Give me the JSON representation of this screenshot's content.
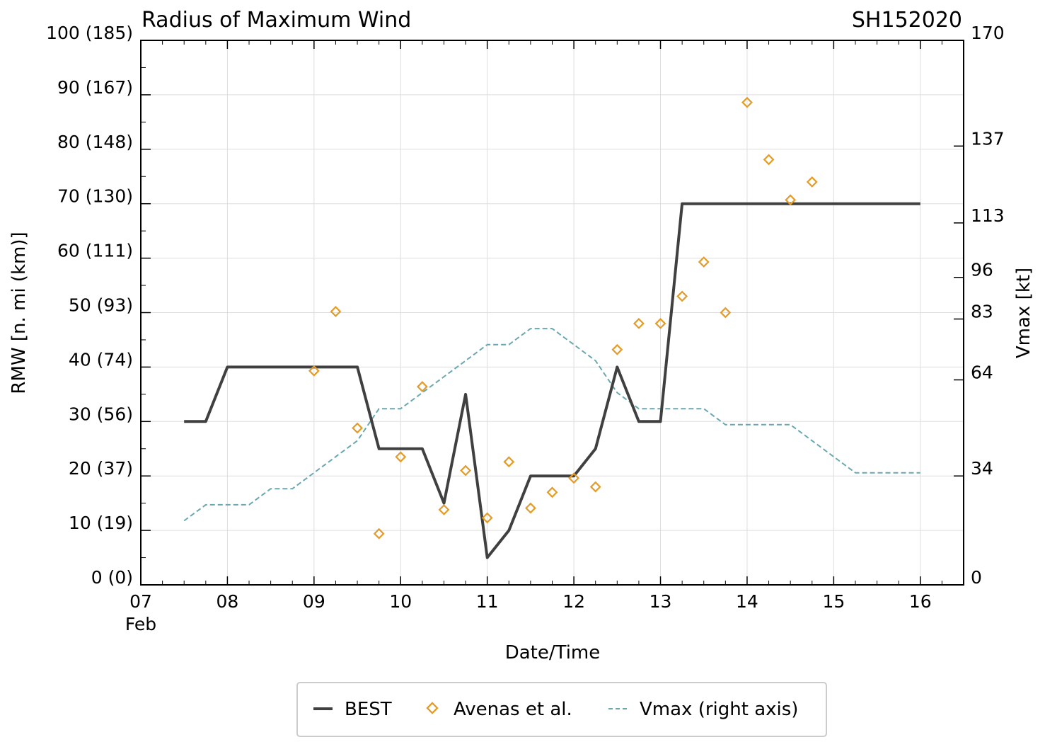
{
  "chart_data": {
    "type": "line",
    "title": "Radius of Maximum Wind",
    "storm_id": "SH152020",
    "xlabel": "Date/Time",
    "ylabel": "RMW [n. mi (km)]",
    "y2label": "Vmax [kt]",
    "month_label": "Feb",
    "xlim": [
      7,
      16.5
    ],
    "ylim": [
      0,
      100
    ],
    "y2lim": [
      0,
      170
    ],
    "x_ticks": [
      {
        "value": 7,
        "label": "07"
      },
      {
        "value": 8,
        "label": "08"
      },
      {
        "value": 9,
        "label": "09"
      },
      {
        "value": 10,
        "label": "10"
      },
      {
        "value": 11,
        "label": "11"
      },
      {
        "value": 12,
        "label": "12"
      },
      {
        "value": 13,
        "label": "13"
      },
      {
        "value": 14,
        "label": "14"
      },
      {
        "value": 15,
        "label": "15"
      },
      {
        "value": 16,
        "label": "16"
      }
    ],
    "y_ticks": [
      {
        "value": 0,
        "label": "0 (0)"
      },
      {
        "value": 10,
        "label": "10 (19)"
      },
      {
        "value": 20,
        "label": "20 (37)"
      },
      {
        "value": 30,
        "label": "30 (56)"
      },
      {
        "value": 40,
        "label": "40 (74)"
      },
      {
        "value": 50,
        "label": "50 (93)"
      },
      {
        "value": 60,
        "label": "60 (111)"
      },
      {
        "value": 70,
        "label": "70 (130)"
      },
      {
        "value": 80,
        "label": "80 (148)"
      },
      {
        "value": 90,
        "label": "90 (167)"
      },
      {
        "value": 100,
        "label": "100 (185)"
      }
    ],
    "y2_ticks": [
      {
        "value": 0,
        "label": "0"
      },
      {
        "value": 34,
        "label": "34"
      },
      {
        "value": 64,
        "label": "64"
      },
      {
        "value": 83,
        "label": "83"
      },
      {
        "value": 96,
        "label": "96"
      },
      {
        "value": 113,
        "label": "113"
      },
      {
        "value": 137,
        "label": "137"
      },
      {
        "value": 170,
        "label": "170"
      }
    ],
    "legend": {
      "position": "bottom-center",
      "entries": [
        {
          "name": "BEST",
          "style": "line"
        },
        {
          "name": "Avenas et al.",
          "style": "diamond"
        },
        {
          "name": "Vmax (right axis)",
          "style": "dashed"
        }
      ]
    },
    "colors": {
      "best": "#404040",
      "avenas": "#e49b27",
      "vmax": "#6aa8b0",
      "grid": "#dddddd",
      "axis": "#000000"
    },
    "series": [
      {
        "name": "BEST",
        "x": [
          7.5,
          7.75,
          8.0,
          8.25,
          8.5,
          8.75,
          9.0,
          9.25,
          9.5,
          9.75,
          10.0,
          10.25,
          10.5,
          10.75,
          11.0,
          11.25,
          11.5,
          11.75,
          12.0,
          12.25,
          12.5,
          12.75,
          13.0,
          13.25,
          13.5,
          13.75,
          14.0,
          14.25,
          14.5,
          14.75,
          15.0,
          15.25,
          15.5,
          15.75,
          16.0
        ],
        "y": [
          30,
          30,
          40,
          40,
          40,
          40,
          40,
          40,
          40,
          25,
          25,
          25,
          15,
          35,
          5,
          10,
          20,
          20,
          20,
          25,
          40,
          30,
          30,
          70,
          70,
          70,
          70,
          70,
          70,
          70,
          70,
          70,
          70,
          70,
          70
        ]
      },
      {
        "name": "Avenas et al.",
        "x": [
          9.0,
          9.25,
          9.5,
          9.75,
          10.0,
          10.25,
          10.5,
          10.75,
          11.0,
          11.25,
          11.5,
          11.75,
          12.0,
          12.25,
          12.5,
          12.75,
          13.0,
          13.25,
          13.5,
          13.75,
          14.0,
          14.25,
          14.5,
          14.75
        ],
        "y": [
          39.3,
          50.2,
          28.8,
          9.4,
          23.5,
          36.4,
          13.8,
          21.0,
          12.3,
          22.6,
          14.1,
          17.0,
          19.6,
          18.0,
          43.2,
          48.0,
          48.0,
          53.0,
          59.3,
          50.0,
          88.6,
          78.1,
          70.7,
          74.0
        ]
      },
      {
        "name": "Vmax (right axis)",
        "axis": "right",
        "x": [
          7.5,
          7.75,
          8.0,
          8.25,
          8.5,
          8.75,
          9.0,
          9.25,
          9.5,
          9.75,
          10.0,
          10.25,
          10.5,
          10.75,
          11.0,
          11.25,
          11.5,
          11.75,
          12.0,
          12.25,
          12.5,
          12.75,
          13.0,
          13.25,
          13.5,
          13.75,
          14.0,
          14.25,
          14.5,
          14.75,
          15.0,
          15.25,
          15.5,
          15.75,
          16.0
        ],
        "y": [
          20,
          25,
          25,
          25,
          30,
          30,
          35,
          40,
          45,
          55,
          55,
          60,
          65,
          70,
          75,
          75,
          80,
          80,
          75,
          70,
          60,
          55,
          55,
          55,
          55,
          50,
          50,
          50,
          50,
          45,
          40,
          35,
          35,
          35,
          35
        ]
      }
    ]
  }
}
